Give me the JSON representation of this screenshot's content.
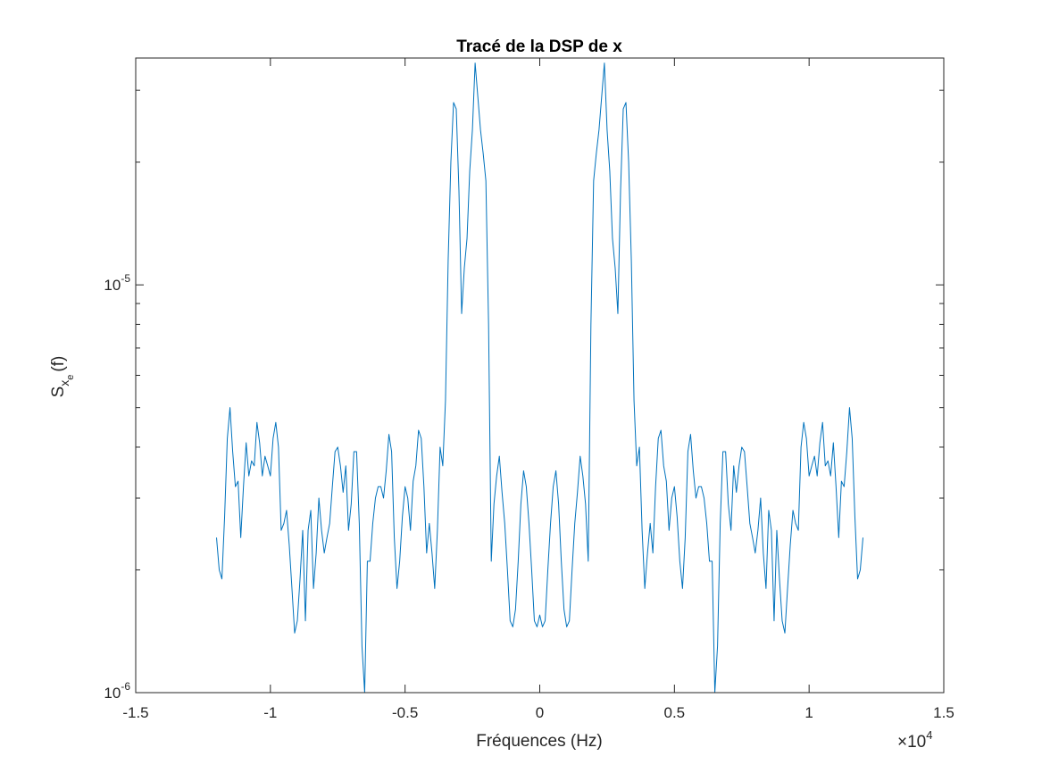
{
  "chart_data": {
    "type": "line",
    "title": "Tracé de la DSP de x",
    "xlabel": "Fréquences (Hz)",
    "ylabel": {
      "base": "S",
      "sub": "x",
      "subsub": "e",
      "suffix": "(f)"
    },
    "x_exponent_label": {
      "base": "×10",
      "exp": "4"
    },
    "xlim": [
      -1.5,
      1.5
    ],
    "ylim": [
      1e-06,
      3.6e-05
    ],
    "yscale": "log",
    "grid": false,
    "series_color": "#0072BD",
    "x_ticks": [
      {
        "value": -1.5,
        "label": "-1.5"
      },
      {
        "value": -1,
        "label": "-1"
      },
      {
        "value": -0.5,
        "label": "-0.5"
      },
      {
        "value": 0,
        "label": "0"
      },
      {
        "value": 0.5,
        "label": "0.5"
      },
      {
        "value": 1,
        "label": "1"
      },
      {
        "value": 1.5,
        "label": "1.5"
      }
    ],
    "y_ticks": [
      {
        "value": 1e-06,
        "base": "10",
        "exp": "-6"
      },
      {
        "value": 1e-05,
        "base": "10",
        "exp": "-5"
      }
    ],
    "series": [
      {
        "x": [
          -1.2,
          -1.19,
          -1.18,
          -1.17,
          -1.16,
          -1.15,
          -1.14,
          -1.13,
          -1.12,
          -1.11,
          -1.1,
          -1.09,
          -1.08,
          -1.07,
          -1.06,
          -1.05,
          -1.04,
          -1.03,
          -1.02,
          -1.01,
          -1.0,
          -0.99,
          -0.98,
          -0.97,
          -0.96,
          -0.95,
          -0.94,
          -0.93,
          -0.92,
          -0.91,
          -0.9,
          -0.89,
          -0.88,
          -0.87,
          -0.86,
          -0.85,
          -0.84,
          -0.83,
          -0.82,
          -0.81,
          -0.8,
          -0.79,
          -0.78,
          -0.77,
          -0.76,
          -0.75,
          -0.74,
          -0.73,
          -0.72,
          -0.71,
          -0.7,
          -0.69,
          -0.68,
          -0.67,
          -0.66,
          -0.65,
          -0.64,
          -0.63,
          -0.62,
          -0.61,
          -0.6,
          -0.59,
          -0.58,
          -0.57,
          -0.56,
          -0.55,
          -0.54,
          -0.53,
          -0.52,
          -0.51,
          -0.5,
          -0.49,
          -0.48,
          -0.47,
          -0.46,
          -0.45,
          -0.44,
          -0.43,
          -0.42,
          -0.41,
          -0.4,
          -0.39,
          -0.38,
          -0.37,
          -0.36,
          -0.35,
          -0.34,
          -0.33,
          -0.32,
          -0.31,
          -0.3,
          -0.29,
          -0.28,
          -0.27,
          -0.26,
          -0.25,
          -0.24,
          -0.23,
          -0.22,
          -0.21,
          -0.2,
          -0.19,
          -0.18,
          -0.17,
          -0.16,
          -0.15,
          -0.14,
          -0.13,
          -0.12,
          -0.11,
          -0.1,
          -0.09,
          -0.08,
          -0.07,
          -0.06,
          -0.05,
          -0.04,
          -0.03,
          -0.02,
          -0.01,
          0.0,
          0.01,
          0.02,
          0.03,
          0.04,
          0.05,
          0.06,
          0.07,
          0.08,
          0.09,
          0.1,
          0.11,
          0.12,
          0.13,
          0.14,
          0.15,
          0.16,
          0.17,
          0.18,
          0.19,
          0.2,
          0.21,
          0.22,
          0.23,
          0.24,
          0.25,
          0.26,
          0.27,
          0.28,
          0.29,
          0.3,
          0.31,
          0.32,
          0.33,
          0.34,
          0.35,
          0.36,
          0.37,
          0.38,
          0.39,
          0.4,
          0.41,
          0.42,
          0.43,
          0.44,
          0.45,
          0.46,
          0.47,
          0.48,
          0.49,
          0.5,
          0.51,
          0.52,
          0.53,
          0.54,
          0.55,
          0.56,
          0.57,
          0.58,
          0.59,
          0.6,
          0.61,
          0.62,
          0.63,
          0.64,
          0.65,
          0.66,
          0.67,
          0.68,
          0.69,
          0.7,
          0.71,
          0.72,
          0.73,
          0.74,
          0.75,
          0.76,
          0.77,
          0.78,
          0.79,
          0.8,
          0.81,
          0.82,
          0.83,
          0.84,
          0.85,
          0.86,
          0.87,
          0.88,
          0.89,
          0.9,
          0.91,
          0.92,
          0.93,
          0.94,
          0.95,
          0.96,
          0.97,
          0.98,
          0.99,
          1.0,
          1.01,
          1.02,
          1.03,
          1.04,
          1.05,
          1.06,
          1.07,
          1.08,
          1.09,
          1.1,
          1.11,
          1.12,
          1.13,
          1.14,
          1.15,
          1.16,
          1.17,
          1.18,
          1.19,
          1.2
        ],
        "values": [
          2.4e-06,
          2e-06,
          1.9e-06,
          2.7e-06,
          4.2e-06,
          5e-06,
          3.9e-06,
          3.2e-06,
          3.3e-06,
          2.4e-06,
          3.2e-06,
          4.1e-06,
          3.4e-06,
          3.7e-06,
          3.6e-06,
          4.6e-06,
          4.1e-06,
          3.4e-06,
          3.8e-06,
          3.6e-06,
          3.4e-06,
          4.2e-06,
          4.6e-06,
          4e-06,
          2.5e-06,
          2.6e-06,
          2.8e-06,
          2.3e-06,
          1.8e-06,
          1.4e-06,
          1.5e-06,
          1.9e-06,
          2.5e-06,
          1.5e-06,
          2.5e-06,
          2.8e-06,
          1.8e-06,
          2.2e-06,
          3e-06,
          2.5e-06,
          2.2e-06,
          2.4e-06,
          2.6e-06,
          3.2e-06,
          3.9e-06,
          4e-06,
          3.6e-06,
          3.1e-06,
          3.6e-06,
          2.5e-06,
          2.9e-06,
          3.9e-06,
          3.9e-06,
          2.6e-06,
          1.3e-06,
          1e-06,
          2.1e-06,
          2.1e-06,
          2.6e-06,
          3e-06,
          3.2e-06,
          3.2e-06,
          3e-06,
          3.5e-06,
          4.3e-06,
          3.9e-06,
          2.4e-06,
          1.8e-06,
          2.1e-06,
          2.7e-06,
          3.2e-06,
          3e-06,
          2.5e-06,
          3.3e-06,
          3.6e-06,
          4.4e-06,
          4.2e-06,
          3.2e-06,
          2.2e-06,
          2.6e-06,
          2.2e-06,
          1.8e-06,
          2.5e-06,
          4e-06,
          3.6e-06,
          5.2e-06,
          1.15e-05,
          2e-05,
          2.8e-05,
          2.7e-05,
          1.7e-05,
          8.5e-06,
          1.1e-05,
          1.3e-05,
          1.9e-05,
          2.4e-05,
          3.5e-05,
          2.9e-05,
          2.4e-05,
          2.1e-05,
          1.8e-05,
          8e-06,
          2.1e-06,
          2.9e-06,
          3.4e-06,
          3.8e-06,
          3.1e-06,
          2.6e-06,
          2e-06,
          1.5e-06,
          1.45e-06,
          1.6e-06,
          2.1e-06,
          2.9e-06,
          3.5e-06,
          3.2e-06,
          2.6e-06,
          2e-06,
          1.5e-06,
          1.45e-06,
          1.55e-06,
          1.45e-06,
          1.5e-06,
          2e-06,
          2.6e-06,
          3.2e-06,
          3.5e-06,
          2.9e-06,
          2.1e-06,
          1.6e-06,
          1.45e-06,
          1.5e-06,
          2e-06,
          2.6e-06,
          3.1e-06,
          3.8e-06,
          3.4e-06,
          2.9e-06,
          2.1e-06,
          8e-06,
          1.8e-05,
          2.1e-05,
          2.4e-05,
          2.9e-05,
          3.5e-05,
          2.4e-05,
          1.9e-05,
          1.3e-05,
          1.1e-05,
          8.5e-06,
          1.7e-05,
          2.7e-05,
          2.8e-05,
          2e-05,
          1.15e-05,
          5.2e-06,
          3.6e-06,
          4e-06,
          2.5e-06,
          1.8e-06,
          2.2e-06,
          2.6e-06,
          2.2e-06,
          3.2e-06,
          4.2e-06,
          4.4e-06,
          3.6e-06,
          3.3e-06,
          2.5e-06,
          3e-06,
          3.2e-06,
          2.7e-06,
          2.1e-06,
          1.8e-06,
          2.4e-06,
          3.9e-06,
          4.3e-06,
          3.5e-06,
          3e-06,
          3.2e-06,
          3.2e-06,
          3e-06,
          2.6e-06,
          2.1e-06,
          2.1e-06,
          1e-06,
          1.3e-06,
          2.6e-06,
          3.9e-06,
          3.9e-06,
          2.9e-06,
          2.5e-06,
          3.6e-06,
          3.1e-06,
          3.6e-06,
          4e-06,
          3.9e-06,
          3.2e-06,
          2.6e-06,
          2.4e-06,
          2.2e-06,
          2.5e-06,
          3e-06,
          2.2e-06,
          1.8e-06,
          2.8e-06,
          2.5e-06,
          1.5e-06,
          2.5e-06,
          1.9e-06,
          1.5e-06,
          1.4e-06,
          1.8e-06,
          2.3e-06,
          2.8e-06,
          2.6e-06,
          2.5e-06,
          4e-06,
          4.6e-06,
          4.2e-06,
          3.4e-06,
          3.6e-06,
          3.8e-06,
          3.4e-06,
          4.1e-06,
          4.6e-06,
          3.6e-06,
          3.7e-06,
          3.4e-06,
          4.1e-06,
          3.2e-06,
          2.4e-06,
          3.3e-06,
          3.2e-06,
          3.9e-06,
          5e-06,
          4.2e-06,
          2.7e-06,
          1.9e-06,
          2e-06,
          2.4e-06
        ]
      }
    ]
  }
}
